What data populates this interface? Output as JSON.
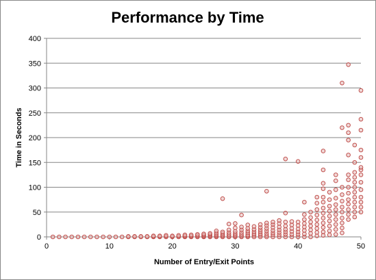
{
  "chart_data": {
    "type": "scatter",
    "title": "Performance by Time",
    "xlabel": "Number of Entry/Exit Points",
    "ylabel": "Time  in Seconds",
    "xlim": [
      0,
      50
    ],
    "ylim": [
      0,
      400
    ],
    "xticks": [
      0,
      10,
      20,
      30,
      40,
      50
    ],
    "yticks": [
      0,
      50,
      100,
      150,
      200,
      250,
      300,
      350,
      400
    ],
    "x_tick_labels": [
      "0",
      "10",
      "20",
      "30",
      "40",
      "50"
    ],
    "y_tick_labels": [
      "0",
      "50",
      "100",
      "150",
      "200",
      "250",
      "300",
      "350",
      "400"
    ],
    "grid": "horizontal",
    "legend": "none",
    "marker_color": "#c0504d",
    "series": [
      {
        "points": [
          [
            1,
            0
          ],
          [
            2,
            0
          ],
          [
            3,
            0
          ],
          [
            4,
            0
          ],
          [
            5,
            0
          ],
          [
            6,
            0
          ],
          [
            7,
            0
          ],
          [
            8,
            0
          ],
          [
            9,
            0
          ],
          [
            10,
            0
          ],
          [
            11,
            0
          ],
          [
            12,
            0
          ],
          [
            13,
            0
          ],
          [
            13,
            1
          ],
          [
            14,
            0
          ],
          [
            14,
            1
          ],
          [
            15,
            0
          ],
          [
            15,
            1
          ],
          [
            16,
            0
          ],
          [
            16,
            1
          ],
          [
            17,
            0
          ],
          [
            17,
            1
          ],
          [
            17,
            2
          ],
          [
            18,
            0
          ],
          [
            18,
            1
          ],
          [
            18,
            2
          ],
          [
            19,
            0
          ],
          [
            19,
            1
          ],
          [
            19,
            3
          ],
          [
            20,
            0
          ],
          [
            20,
            1
          ],
          [
            20,
            2
          ],
          [
            21,
            0
          ],
          [
            21,
            1
          ],
          [
            21,
            3
          ],
          [
            22,
            0
          ],
          [
            22,
            1
          ],
          [
            22,
            2
          ],
          [
            22,
            4
          ],
          [
            23,
            0
          ],
          [
            23,
            1
          ],
          [
            23,
            2
          ],
          [
            23,
            4
          ],
          [
            24,
            0
          ],
          [
            24,
            1
          ],
          [
            24,
            3
          ],
          [
            24,
            5
          ],
          [
            25,
            0
          ],
          [
            25,
            1
          ],
          [
            25,
            2
          ],
          [
            25,
            4
          ],
          [
            25,
            6
          ],
          [
            26,
            0
          ],
          [
            26,
            1
          ],
          [
            26,
            3
          ],
          [
            26,
            5
          ],
          [
            26,
            7
          ],
          [
            27,
            0
          ],
          [
            27,
            1
          ],
          [
            27,
            3
          ],
          [
            27,
            5
          ],
          [
            27,
            8
          ],
          [
            27,
            12
          ],
          [
            28,
            0
          ],
          [
            28,
            2
          ],
          [
            28,
            4
          ],
          [
            28,
            7
          ],
          [
            28,
            10
          ],
          [
            28,
            77
          ],
          [
            29,
            0
          ],
          [
            29,
            2
          ],
          [
            29,
            5
          ],
          [
            29,
            9
          ],
          [
            29,
            14
          ],
          [
            29,
            26
          ],
          [
            30,
            0
          ],
          [
            30,
            2
          ],
          [
            30,
            4
          ],
          [
            30,
            7
          ],
          [
            30,
            11
          ],
          [
            30,
            18
          ],
          [
            30,
            27
          ],
          [
            31,
            0
          ],
          [
            31,
            2
          ],
          [
            31,
            5
          ],
          [
            31,
            9
          ],
          [
            31,
            14
          ],
          [
            31,
            20
          ],
          [
            31,
            44
          ],
          [
            32,
            0
          ],
          [
            32,
            2
          ],
          [
            32,
            4
          ],
          [
            32,
            8
          ],
          [
            32,
            12
          ],
          [
            32,
            17
          ],
          [
            32,
            24
          ],
          [
            33,
            0
          ],
          [
            33,
            3
          ],
          [
            33,
            6
          ],
          [
            33,
            10
          ],
          [
            33,
            15
          ],
          [
            33,
            21
          ],
          [
            34,
            0
          ],
          [
            34,
            3
          ],
          [
            34,
            6
          ],
          [
            34,
            10
          ],
          [
            34,
            14
          ],
          [
            34,
            19
          ],
          [
            34,
            25
          ],
          [
            35,
            0
          ],
          [
            35,
            3
          ],
          [
            35,
            7
          ],
          [
            35,
            12
          ],
          [
            35,
            17
          ],
          [
            35,
            23
          ],
          [
            35,
            28
          ],
          [
            35,
            92
          ],
          [
            36,
            0
          ],
          [
            36,
            4
          ],
          [
            36,
            8
          ],
          [
            36,
            13
          ],
          [
            36,
            19
          ],
          [
            36,
            25
          ],
          [
            36,
            30
          ],
          [
            37,
            0
          ],
          [
            37,
            4
          ],
          [
            37,
            9
          ],
          [
            37,
            14
          ],
          [
            37,
            20
          ],
          [
            37,
            27
          ],
          [
            37,
            33
          ],
          [
            38,
            0
          ],
          [
            38,
            5
          ],
          [
            38,
            10
          ],
          [
            38,
            15
          ],
          [
            38,
            22
          ],
          [
            38,
            30
          ],
          [
            38,
            48
          ],
          [
            38,
            157
          ],
          [
            39,
            0
          ],
          [
            39,
            5
          ],
          [
            39,
            11
          ],
          [
            39,
            17
          ],
          [
            39,
            24
          ],
          [
            39,
            31
          ],
          [
            40,
            0
          ],
          [
            40,
            5
          ],
          [
            40,
            10
          ],
          [
            40,
            16
          ],
          [
            40,
            23
          ],
          [
            40,
            30
          ],
          [
            40,
            152
          ],
          [
            41,
            0
          ],
          [
            41,
            6
          ],
          [
            41,
            13
          ],
          [
            41,
            20
          ],
          [
            41,
            27
          ],
          [
            41,
            35
          ],
          [
            41,
            45
          ],
          [
            41,
            70
          ],
          [
            42,
            0
          ],
          [
            42,
            7
          ],
          [
            42,
            14
          ],
          [
            42,
            22
          ],
          [
            42,
            30
          ],
          [
            42,
            39
          ],
          [
            42,
            50
          ],
          [
            43,
            2
          ],
          [
            43,
            9
          ],
          [
            43,
            17
          ],
          [
            43,
            25
          ],
          [
            43,
            34
          ],
          [
            43,
            44
          ],
          [
            43,
            55
          ],
          [
            43,
            68
          ],
          [
            43,
            80
          ],
          [
            44,
            3
          ],
          [
            44,
            10
          ],
          [
            44,
            19
          ],
          [
            44,
            28
          ],
          [
            44,
            38
          ],
          [
            44,
            48
          ],
          [
            44,
            58
          ],
          [
            44,
            70
          ],
          [
            44,
            80
          ],
          [
            44,
            97
          ],
          [
            44,
            108
          ],
          [
            44,
            135
          ],
          [
            44,
            173
          ],
          [
            45,
            4
          ],
          [
            45,
            12
          ],
          [
            45,
            22
          ],
          [
            45,
            32
          ],
          [
            45,
            42
          ],
          [
            45,
            52
          ],
          [
            45,
            62
          ],
          [
            45,
            75
          ],
          [
            45,
            90
          ],
          [
            46,
            5
          ],
          [
            46,
            15
          ],
          [
            46,
            25
          ],
          [
            46,
            35
          ],
          [
            46,
            45
          ],
          [
            46,
            55
          ],
          [
            46,
            65
          ],
          [
            46,
            78
          ],
          [
            46,
            95
          ],
          [
            46,
            113
          ],
          [
            46,
            125
          ],
          [
            47,
            8
          ],
          [
            47,
            18
          ],
          [
            47,
            28
          ],
          [
            47,
            38
          ],
          [
            47,
            50
          ],
          [
            47,
            60
          ],
          [
            47,
            72
          ],
          [
            47,
            85
          ],
          [
            47,
            100
          ],
          [
            47,
            220
          ],
          [
            47,
            310
          ],
          [
            48,
            35
          ],
          [
            48,
            45
          ],
          [
            48,
            55
          ],
          [
            48,
            66
          ],
          [
            48,
            75
          ],
          [
            48,
            88
          ],
          [
            48,
            100
          ],
          [
            48,
            115
          ],
          [
            48,
            125
          ],
          [
            48,
            165
          ],
          [
            48,
            195
          ],
          [
            48,
            210
          ],
          [
            48,
            225
          ],
          [
            48,
            347
          ],
          [
            49,
            40
          ],
          [
            49,
            50
          ],
          [
            49,
            60
          ],
          [
            49,
            70
          ],
          [
            49,
            80
          ],
          [
            49,
            90
          ],
          [
            49,
            100
          ],
          [
            49,
            110
          ],
          [
            49,
            120
          ],
          [
            49,
            130
          ],
          [
            49,
            150
          ],
          [
            49,
            185
          ],
          [
            50,
            50
          ],
          [
            50,
            60
          ],
          [
            50,
            70
          ],
          [
            50,
            80
          ],
          [
            50,
            95
          ],
          [
            50,
            110
          ],
          [
            50,
            125
          ],
          [
            50,
            135
          ],
          [
            50,
            140
          ],
          [
            50,
            160
          ],
          [
            50,
            175
          ],
          [
            50,
            215
          ],
          [
            50,
            237
          ],
          [
            50,
            295
          ]
        ]
      }
    ]
  }
}
